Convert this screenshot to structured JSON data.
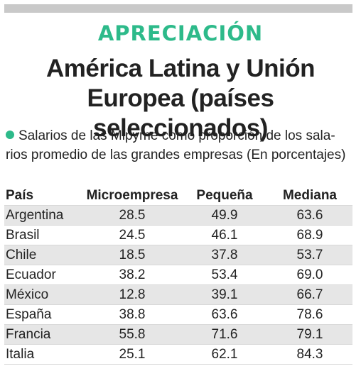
{
  "kicker": "APRECIACIÓN",
  "title_line1": "América Latina y Unión",
  "title_line2": "Europea (países seleccionados)",
  "subtitle_line1": "Salarios de las Mipyme como proporción de los sala-",
  "subtitle_line2": "rios promedio de las grandes empresas (En porcentajes)",
  "colors": {
    "accent": "#2dba8a",
    "band": "#e6e6e6",
    "top_bar": "#c9c9c9"
  },
  "table": {
    "headers": {
      "country": "País",
      "micro": "Microempresa",
      "small": "Pequeña",
      "medium": "Mediana"
    },
    "rows": [
      {
        "country": "Argentina",
        "micro": "28.5",
        "small": "49.9",
        "medium": "63.6"
      },
      {
        "country": "Brasil",
        "micro": "24.5",
        "small": "46.1",
        "medium": "68.9"
      },
      {
        "country": "Chile",
        "micro": "18.5",
        "small": "37.8",
        "medium": "53.7"
      },
      {
        "country": "Ecuador",
        "micro": "38.2",
        "small": "53.4",
        "medium": "69.0"
      },
      {
        "country": "México",
        "micro": "12.8",
        "small": "39.1",
        "medium": "66.7"
      },
      {
        "country": "España",
        "micro": "38.8",
        "small": "63.6",
        "medium": "78.6"
      },
      {
        "country": "Francia",
        "micro": "55.8",
        "small": "71.6",
        "medium": "79.1"
      },
      {
        "country": "Italia",
        "micro": "25.1",
        "small": "62.1",
        "medium": "84.3"
      }
    ]
  }
}
